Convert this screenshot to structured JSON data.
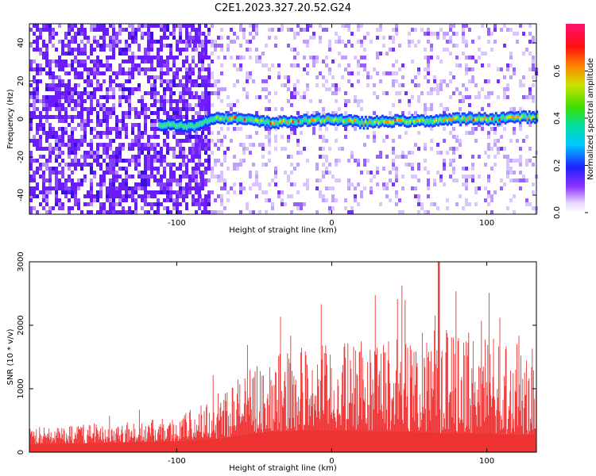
{
  "title": "C2E1.2023.327.20.52.G24",
  "colors": {
    "axis": "#000000",
    "snr_fill": "#ee3333",
    "spectrogram_bg": "#ffffff",
    "noise_purple": "#6a1bff"
  },
  "chart_data": [
    {
      "type": "heatmap",
      "xlabel": "Height of straight line (km)",
      "ylabel": "Frequency (Hz)",
      "xlim": [
        -195,
        132
      ],
      "ylim": [
        -50,
        50
      ],
      "xticks": [
        -100,
        0,
        100
      ],
      "yticks": [
        -40,
        -20,
        0,
        20,
        40
      ],
      "grid": false,
      "colorbar": {
        "label": "Normalized spectral amplitude",
        "range": [
          0,
          0.8
        ],
        "ticks": [
          0.0,
          0.2,
          0.4,
          0.6
        ],
        "colormap": "white-purple-blue-cyan-green-yellow-red-magenta"
      },
      "ridge": {
        "description_values": "signal ridge near 0 Hz from x=-112 km to x=132 km",
        "x": [
          -112,
          -100,
          -90,
          -75,
          -60,
          -40,
          -20,
          0,
          20,
          40,
          60,
          80,
          100,
          120,
          132
        ],
        "freq_hz": [
          -3,
          -3,
          -4,
          1,
          0,
          -2,
          -1,
          0,
          -2,
          -1,
          -1,
          0,
          0,
          1,
          1
        ]
      }
    },
    {
      "type": "area",
      "xlabel": "Height of straight line (km)",
      "ylabel": "SNR (10 * v/v)",
      "xlim": [
        -195,
        132
      ],
      "ylim": [
        0,
        3000
      ],
      "xticks": [
        -100,
        0,
        100
      ],
      "yticks": [
        0,
        1000,
        2000,
        3000
      ],
      "grid": false,
      "series": [
        {
          "x": [
            -195,
            -180,
            -160,
            -140,
            -120,
            -100,
            -90,
            -80,
            -70,
            -60,
            -50,
            -40,
            -30,
            -20,
            -10,
            0,
            10,
            20,
            30,
            40,
            50,
            60,
            70,
            80,
            90,
            100,
            110,
            120,
            132
          ],
          "upper": [
            380,
            420,
            450,
            480,
            500,
            560,
            700,
            850,
            1050,
            1200,
            1350,
            1500,
            1600,
            1650,
            1700,
            1700,
            1750,
            1750,
            1800,
            1850,
            1900,
            1900,
            1950,
            1950,
            1900,
            1850,
            1800,
            1850,
            1900
          ],
          "lower": [
            120,
            130,
            140,
            150,
            160,
            170,
            180,
            200,
            220,
            260,
            300,
            320,
            330,
            340,
            350,
            340,
            340,
            330,
            330,
            320,
            320,
            310,
            300,
            300,
            300,
            290,
            280,
            280,
            270
          ],
          "peak": {
            "x": 69,
            "y": 3000
          }
        }
      ]
    }
  ]
}
